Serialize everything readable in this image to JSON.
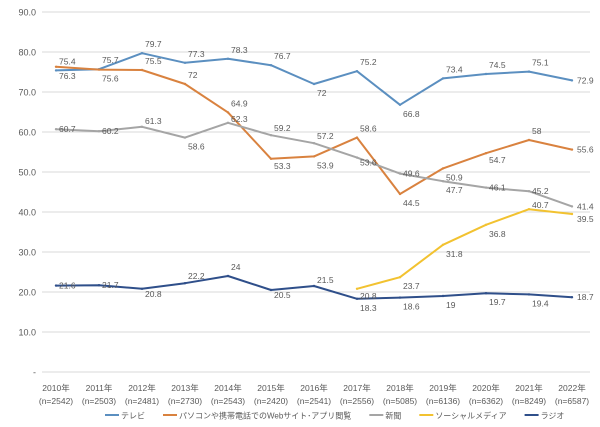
{
  "chart_data": {
    "type": "line",
    "title": "",
    "xlabel": "",
    "ylabel": "",
    "ylim": [
      0,
      90
    ],
    "yticks": [
      "-",
      "10.0",
      "20.0",
      "30.0",
      "40.0",
      "50.0",
      "60.0",
      "70.0",
      "80.0",
      "90.0"
    ],
    "grid": true,
    "legend_position": "bottom",
    "categories": [
      "2010年",
      "2011年",
      "2012年",
      "2013年",
      "2014年",
      "2015年",
      "2016年",
      "2017年",
      "2018年",
      "2019年",
      "2020年",
      "2021年",
      "2022年"
    ],
    "category_samples": [
      "(n=2542)",
      "(n=2503)",
      "(n=2481)",
      "(n=2730)",
      "(n=2543)",
      "(n=2420)",
      "(n=2541)",
      "(n=2556)",
      "(n=5085)",
      "(n=6136)",
      "(n=6362)",
      "(n=8249)",
      "(n=6587)"
    ],
    "series": [
      {
        "name": "テレビ",
        "color": "#5b8fc0",
        "values": [
          75.4,
          75.7,
          79.7,
          77.3,
          78.3,
          76.7,
          72.0,
          75.2,
          66.8,
          73.4,
          74.5,
          75.1,
          72.9
        ]
      },
      {
        "name": "パソコンや携帯電話でのWebサイト･アプリ閲覧",
        "color": "#d9823f",
        "values": [
          76.3,
          75.6,
          75.5,
          72.0,
          64.9,
          53.3,
          53.9,
          58.6,
          44.5,
          50.9,
          54.7,
          58.0,
          55.6
        ]
      },
      {
        "name": "新聞",
        "color": "#a5a5a5",
        "values": [
          60.7,
          60.2,
          61.3,
          58.6,
          62.3,
          59.2,
          57.2,
          53.6,
          49.6,
          47.7,
          46.1,
          45.2,
          41.4
        ]
      },
      {
        "name": "ソーシャルメディア",
        "color": "#f2c230",
        "values": [
          null,
          null,
          null,
          null,
          null,
          null,
          null,
          20.8,
          23.7,
          31.8,
          36.8,
          40.7,
          39.5
        ]
      },
      {
        "name": "ラジオ",
        "color": "#2f4f8a",
        "values": [
          21.6,
          21.7,
          20.8,
          22.2,
          24.0,
          20.5,
          21.5,
          18.3,
          18.6,
          19.0,
          19.7,
          19.4,
          18.7
        ]
      }
    ]
  }
}
